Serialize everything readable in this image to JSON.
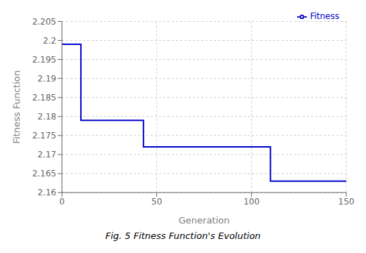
{
  "chart_data": {
    "type": "line",
    "title": "Fig. 5 Fitness Function's Evolution",
    "x_label": "Generation",
    "y_label": "Fitness Function",
    "x": [
      0,
      10,
      10,
      43,
      43,
      110,
      110,
      150
    ],
    "series": [
      {
        "name": "Fitness",
        "color": "#0000CC",
        "values": [
          2.199,
          2.199,
          2.179,
          2.179,
          2.172,
          2.172,
          2.163,
          2.163
        ]
      }
    ],
    "xlim": [
      0,
      150
    ],
    "ylim": [
      2.16,
      2.205
    ],
    "xticks": [
      0,
      50,
      100,
      150
    ],
    "yticks": [
      2.16,
      2.165,
      2.17,
      2.175,
      2.18,
      2.185,
      2.19,
      2.195,
      2.2,
      2.205
    ],
    "grid": true,
    "legend": "upper right"
  }
}
